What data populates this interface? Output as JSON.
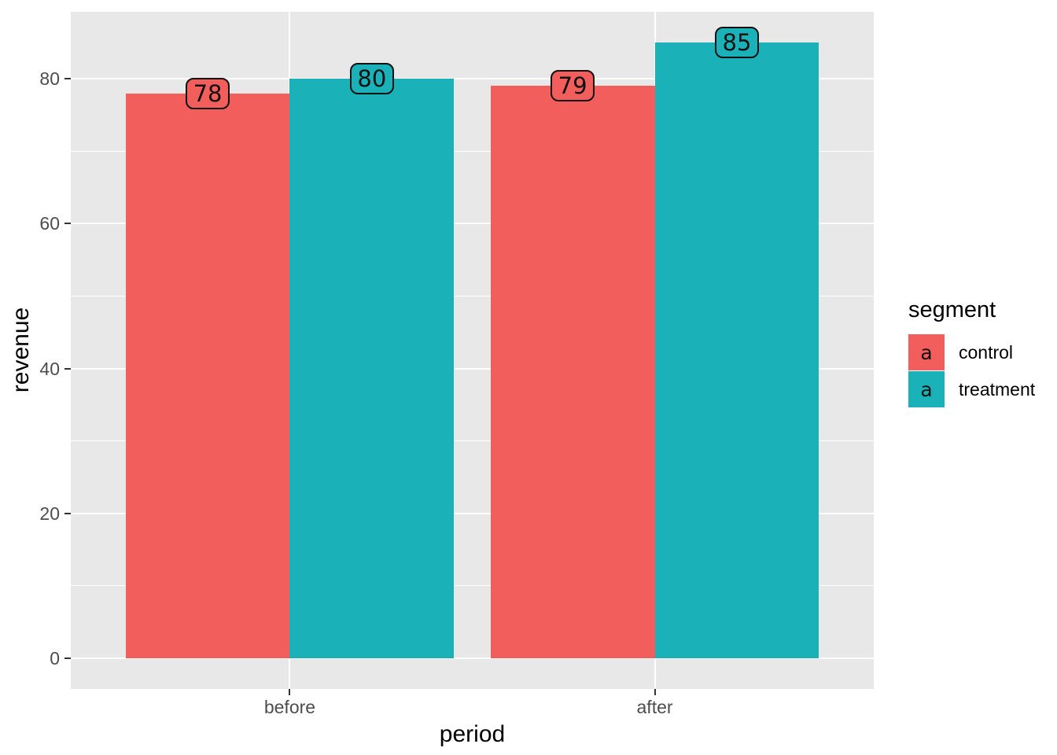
{
  "chart_data": {
    "type": "bar",
    "title": "",
    "categories": [
      "before",
      "after"
    ],
    "series": [
      {
        "name": "control",
        "color": "#F25E5C",
        "values": [
          78,
          79
        ]
      },
      {
        "name": "treatment",
        "color": "#1AB2B8",
        "values": [
          80,
          85
        ]
      }
    ],
    "bar_value_labels": true,
    "xlabel": "period",
    "ylabel": "revenue",
    "y_ticks": [
      0,
      20,
      40,
      60,
      80
    ],
    "y_minor_ticks": [
      10,
      30,
      50,
      70
    ],
    "ylim": [
      -4.25,
      89.25
    ],
    "grid": "major-and-minor, white on gray panel",
    "panel_bg": "#E8E8E8",
    "grid_color": "#FFFFFF",
    "tick_color": "#333333",
    "tick_label_color": "#4D4D4D",
    "legend": {
      "title": "segment",
      "position": "right",
      "key_glyph": "a"
    }
  }
}
